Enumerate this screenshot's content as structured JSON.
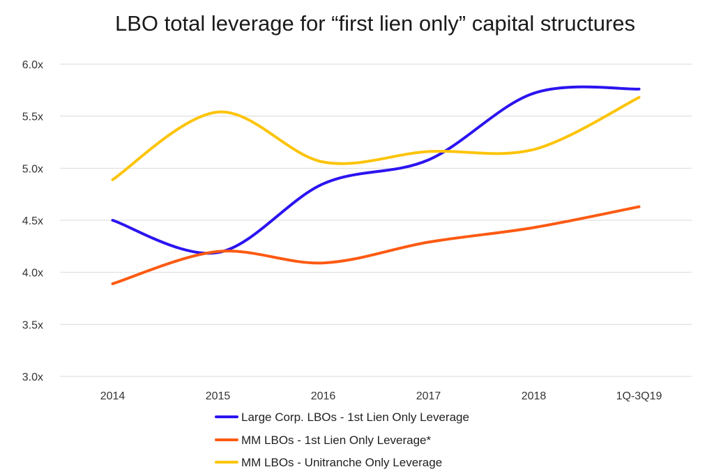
{
  "chart_data": {
    "type": "line",
    "title": "LBO total leverage for “first lien only” capital structures",
    "xlabel": "",
    "ylabel": "",
    "categories": [
      "2014",
      "2015",
      "2016",
      "2017",
      "2018",
      "1Q-3Q19"
    ],
    "ylim": [
      3.0,
      6.0
    ],
    "yticks": [
      {
        "value": 3.0,
        "label": "3.0x"
      },
      {
        "value": 3.5,
        "label": "3.5x"
      },
      {
        "value": 4.0,
        "label": "4.0x"
      },
      {
        "value": 4.5,
        "label": "4.5x"
      },
      {
        "value": 5.0,
        "label": "5.0x"
      },
      {
        "value": 5.5,
        "label": "5.5x"
      },
      {
        "value": 6.0,
        "label": "6.0x"
      }
    ],
    "grid": true,
    "legend_position": "bottom",
    "smooth": true,
    "series": [
      {
        "name": "Large Corp. LBOs - 1st Lien Only Leverage",
        "color": "#2b14f0",
        "values": [
          4.5,
          4.19,
          4.85,
          5.08,
          5.72,
          5.76
        ]
      },
      {
        "name": "MM LBOs - 1st Lien Only Leverage*",
        "color": "#fc5a12",
        "values": [
          3.89,
          4.2,
          4.09,
          4.29,
          4.43,
          4.63
        ]
      },
      {
        "name": "MM LBOs - Unitranche Only Leverage",
        "color": "#fcc40a",
        "values": [
          4.89,
          5.54,
          5.06,
          5.16,
          5.18,
          5.68
        ]
      }
    ]
  }
}
